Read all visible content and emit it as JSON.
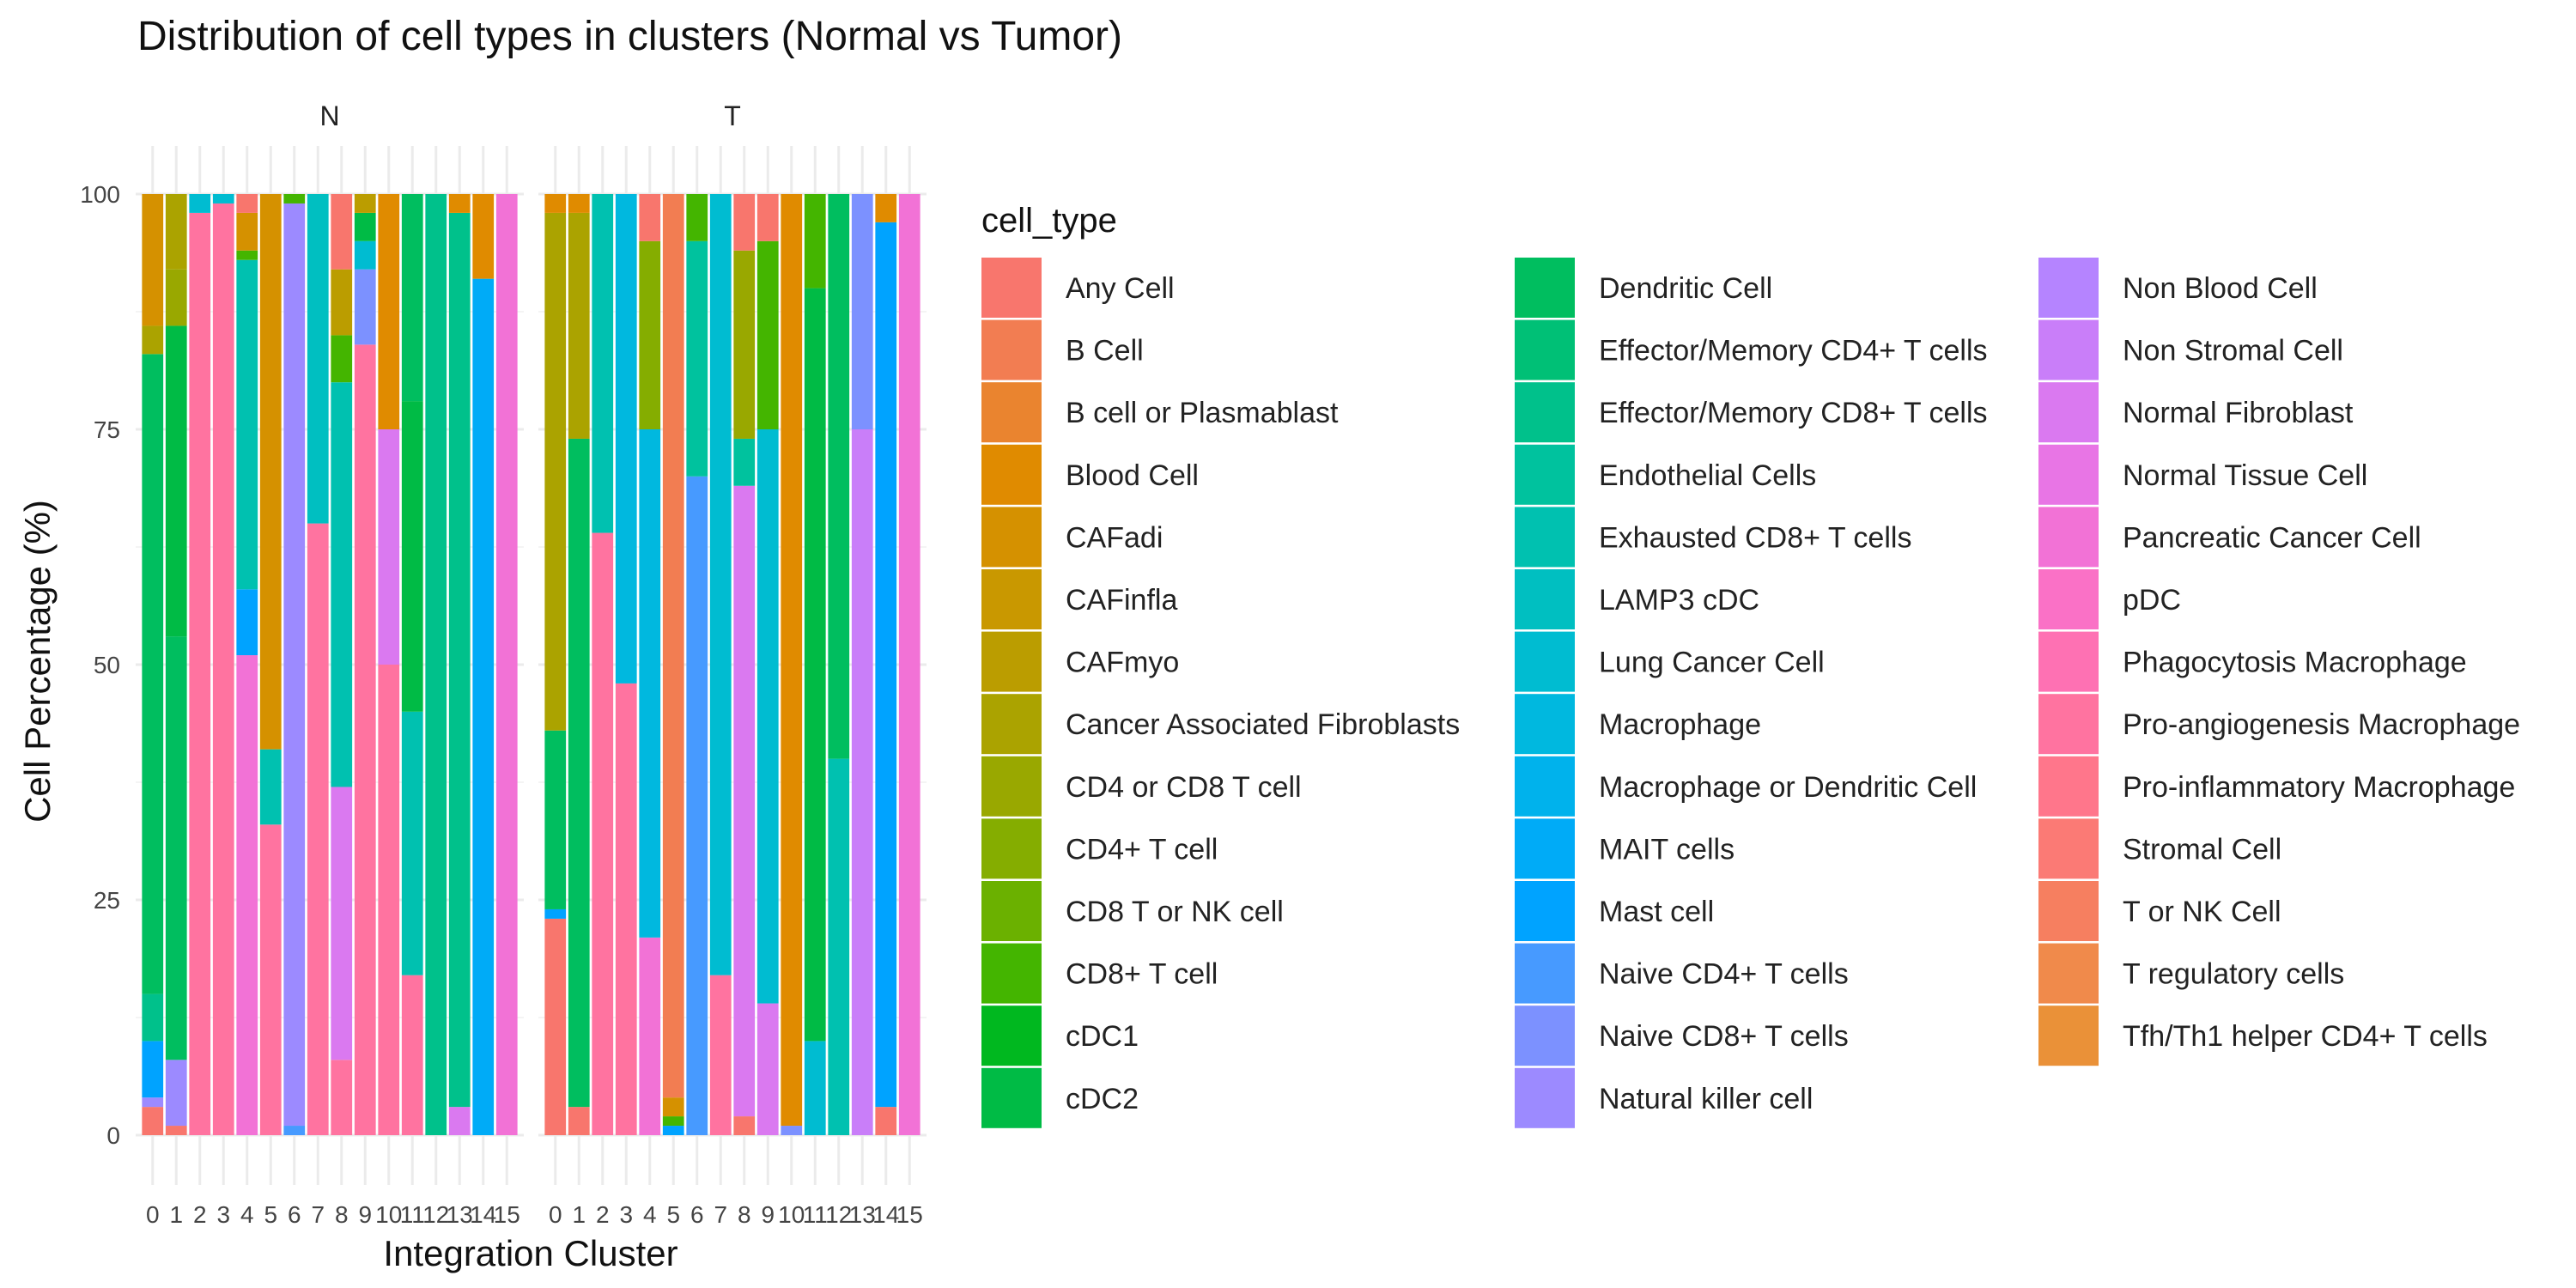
{
  "chart_data": {
    "type": "bar",
    "stacked": true,
    "normalized": true,
    "title": "Distribution of cell types in clusters (Normal vs Tumor)",
    "xlabel": "Integration Cluster",
    "ylabel": "Cell Percentage (%)",
    "ylim": [
      0,
      100
    ],
    "yticks": [
      "0",
      "25",
      "50",
      "75",
      "100"
    ],
    "categories": [
      "0",
      "1",
      "2",
      "3",
      "4",
      "5",
      "6",
      "7",
      "8",
      "9",
      "10",
      "11",
      "12",
      "13",
      "14",
      "15"
    ],
    "legend_title": "cell_type",
    "legend_position": "right",
    "grid": true,
    "cell_types": [
      {
        "name": "Any Cell",
        "color": "#F8766D"
      },
      {
        "name": "B Cell",
        "color": "#F27D52"
      },
      {
        "name": "B cell or Plasmablast",
        "color": "#EA842F"
      },
      {
        "name": "Blood Cell",
        "color": "#E08B00"
      },
      {
        "name": "CAFadi",
        "color": "#D59100"
      },
      {
        "name": "CAFinfla",
        "color": "#C99800"
      },
      {
        "name": "CAFmyo",
        "color": "#BB9D00"
      },
      {
        "name": "Cancer Associated Fibroblasts",
        "color": "#ABA300"
      },
      {
        "name": "CD4 or CD8 T cell",
        "color": "#99A800"
      },
      {
        "name": "CD4+ T cell",
        "color": "#85AD00"
      },
      {
        "name": "CD8 T or NK cell",
        "color": "#6BB100"
      },
      {
        "name": "CD8+ T cell",
        "color": "#44B500"
      },
      {
        "name": "cDC1",
        "color": "#00B81F"
      },
      {
        "name": "cDC2",
        "color": "#00BB45"
      },
      {
        "name": "Dendritic Cell",
        "color": "#00BE5F"
      },
      {
        "name": "Effector/Memory CD4+ T cells",
        "color": "#00C076"
      },
      {
        "name": "Effector/Memory CD8+ T cells",
        "color": "#00C18B"
      },
      {
        "name": "Endothelial Cells",
        "color": "#00C29E"
      },
      {
        "name": "Exhausted CD8+ T cells",
        "color": "#00C1B0"
      },
      {
        "name": "LAMP3 cDC",
        "color": "#00BFC1"
      },
      {
        "name": "Lung Cancer Cell",
        "color": "#00BCD1"
      },
      {
        "name": "Macrophage",
        "color": "#00B8DF"
      },
      {
        "name": "Macrophage or Dendritic Cell",
        "color": "#00B2EC"
      },
      {
        "name": "MAIT cells",
        "color": "#00ABF7"
      },
      {
        "name": "Mast cell",
        "color": "#00A3FF"
      },
      {
        "name": "Naive CD4+ T cells",
        "color": "#479AFF"
      },
      {
        "name": "Naive CD8+ T cells",
        "color": "#7C91FF"
      },
      {
        "name": "Natural killer cell",
        "color": "#9C8AFF"
      },
      {
        "name": "Non Blood Cell",
        "color": "#B584FF"
      },
      {
        "name": "Non Stromal Cell",
        "color": "#C97EF9"
      },
      {
        "name": "Normal Fibroblast",
        "color": "#DA79F0"
      },
      {
        "name": "Normal Tissue Cell",
        "color": "#E875E5"
      },
      {
        "name": "Pancreatic Cancer Cell",
        "color": "#F272D6"
      },
      {
        "name": "pDC",
        "color": "#FA71C6"
      },
      {
        "name": "Phagocytosis Macrophage",
        "color": "#FE71B3"
      },
      {
        "name": "Pro-angiogenesis Macrophage",
        "color": "#FF73A0"
      },
      {
        "name": "Pro-inflammatory Macrophage",
        "color": "#FF768B"
      },
      {
        "name": "Stromal Cell",
        "color": "#FB7A75"
      },
      {
        "name": "T or NK Cell",
        "color": "#F67F60"
      },
      {
        "name": "T regulatory cells",
        "color": "#F08A4B"
      },
      {
        "name": "Tfh/Th1 helper CD4+ T cells",
        "color": "#EA9138"
      }
    ],
    "panels": [
      {
        "name": "N",
        "stacks": [
          [
            [
              "Any Cell",
              3
            ],
            [
              "Natural killer cell",
              1
            ],
            [
              "Mast cell",
              6
            ],
            [
              "Effector/Memory CD8+ T cells",
              5
            ],
            [
              "Dendritic Cell",
              68
            ],
            [
              "Cancer Associated Fibroblasts",
              3
            ],
            [
              "CAFadi",
              14
            ]
          ],
          [
            [
              "Any Cell",
              1
            ],
            [
              "Natural killer cell",
              7
            ],
            [
              "Dendritic Cell",
              45
            ],
            [
              "cDC2",
              33
            ],
            [
              "CD4 or CD8 T cell",
              6
            ],
            [
              "Cancer Associated Fibroblasts",
              8
            ]
          ],
          [
            [
              "Pro-angiogenesis Macrophage",
              98
            ],
            [
              "Lung Cancer Cell",
              2
            ]
          ],
          [
            [
              "Pro-angiogenesis Macrophage",
              99
            ],
            [
              "Lung Cancer Cell",
              1
            ]
          ],
          [
            [
              "Pancreatic Cancer Cell",
              51
            ],
            [
              "Mast cell",
              7
            ],
            [
              "Exhausted CD8+ T cells",
              35
            ],
            [
              "CD8+ T cell",
              1
            ],
            [
              "CAFadi",
              4
            ],
            [
              "Any Cell",
              2
            ]
          ],
          [
            [
              "Pro-angiogenesis Macrophage",
              33
            ],
            [
              "Exhausted CD8+ T cells",
              8
            ],
            [
              "CAFadi",
              59
            ]
          ],
          [
            [
              "Naive CD4+ T cells",
              1
            ],
            [
              "Natural killer cell",
              98
            ],
            [
              "CD8+ T cell",
              1
            ]
          ],
          [
            [
              "Pro-angiogenesis Macrophage",
              65
            ],
            [
              "LAMP3 cDC",
              35
            ]
          ],
          [
            [
              "Pro-angiogenesis Macrophage",
              8
            ],
            [
              "Normal Fibroblast",
              29
            ],
            [
              "Exhausted CD8+ T cells",
              43
            ],
            [
              "CD8+ T cell",
              5
            ],
            [
              "CAFmyo",
              7
            ],
            [
              "Any Cell",
              8
            ]
          ],
          [
            [
              "Pro-angiogenesis Macrophage",
              84
            ],
            [
              "Naive CD8+ T cells",
              8
            ],
            [
              "Lung Cancer Cell",
              3
            ],
            [
              "cDC2",
              3
            ],
            [
              "CAFmyo",
              2
            ]
          ],
          [
            [
              "Pro-angiogenesis Macrophage",
              50
            ],
            [
              "Normal Fibroblast",
              25
            ],
            [
              "Blood Cell",
              25
            ]
          ],
          [
            [
              "Pro-angiogenesis Macrophage",
              17
            ],
            [
              "Exhausted CD8+ T cells",
              28
            ],
            [
              "cDC2",
              33
            ],
            [
              "Dendritic Cell",
              22
            ]
          ],
          [
            [
              "Effector/Memory CD8+ T cells",
              100
            ]
          ],
          [
            [
              "Normal Fibroblast",
              3
            ],
            [
              "Effector/Memory CD8+ T cells",
              95
            ],
            [
              "Blood Cell",
              2
            ]
          ],
          [
            [
              "MAIT cells",
              91
            ],
            [
              "Blood Cell",
              9
            ]
          ],
          [
            [
              "Pancreatic Cancer Cell",
              100
            ]
          ]
        ]
      },
      {
        "name": "T",
        "stacks": [
          [
            [
              "Any Cell",
              23
            ],
            [
              "Mast cell",
              1
            ],
            [
              "Dendritic Cell",
              19
            ],
            [
              "Cancer Associated Fibroblasts",
              55
            ],
            [
              "Blood Cell",
              2
            ]
          ],
          [
            [
              "Any Cell",
              3
            ],
            [
              "Dendritic Cell",
              71
            ],
            [
              "Cancer Associated Fibroblasts",
              24
            ],
            [
              "Blood Cell",
              2
            ]
          ],
          [
            [
              "Pro-angiogenesis Macrophage",
              64
            ],
            [
              "Exhausted CD8+ T cells",
              36
            ]
          ],
          [
            [
              "Pro-angiogenesis Macrophage",
              48
            ],
            [
              "Macrophage",
              52
            ]
          ],
          [
            [
              "Pancreatic Cancer Cell",
              21
            ],
            [
              "Macrophage",
              54
            ],
            [
              "CD4+ T cell",
              20
            ],
            [
              "Any Cell",
              5
            ]
          ],
          [
            [
              "Mast cell",
              1
            ],
            [
              "CD8+ T cell",
              1
            ],
            [
              "CAFadi",
              2
            ],
            [
              "B Cell",
              96
            ]
          ],
          [
            [
              "Naive CD4+ T cells",
              70
            ],
            [
              "Endothelial Cells",
              25
            ],
            [
              "CD8+ T cell",
              5
            ]
          ],
          [
            [
              "Pro-angiogenesis Macrophage",
              17
            ],
            [
              "Lung Cancer Cell",
              83
            ]
          ],
          [
            [
              "Any Cell",
              2
            ],
            [
              "Normal Fibroblast",
              67
            ],
            [
              "Endothelial Cells",
              5
            ],
            [
              "CD4 or CD8 T cell",
              20
            ],
            [
              "Any Cell",
              6
            ]
          ],
          [
            [
              "Normal Fibroblast",
              14
            ],
            [
              "Lung Cancer Cell",
              61
            ],
            [
              "CD8+ T cell",
              20
            ],
            [
              "Any Cell",
              5
            ]
          ],
          [
            [
              "Naive CD8+ T cells",
              1
            ],
            [
              "Blood Cell",
              99
            ]
          ],
          [
            [
              "Lung Cancer Cell",
              10
            ],
            [
              "cDC2",
              80
            ],
            [
              "CD8+ T cell",
              10
            ]
          ],
          [
            [
              "Exhausted CD8+ T cells",
              40
            ],
            [
              "Dendritic Cell",
              60
            ]
          ],
          [
            [
              "Non Stromal Cell",
              75
            ],
            [
              "Naive CD8+ T cells",
              25
            ]
          ],
          [
            [
              "Any Cell",
              3
            ],
            [
              "Mast cell",
              94
            ],
            [
              "Blood Cell",
              3
            ]
          ],
          [
            [
              "Pancreatic Cancer Cell",
              100
            ]
          ]
        ]
      }
    ]
  }
}
